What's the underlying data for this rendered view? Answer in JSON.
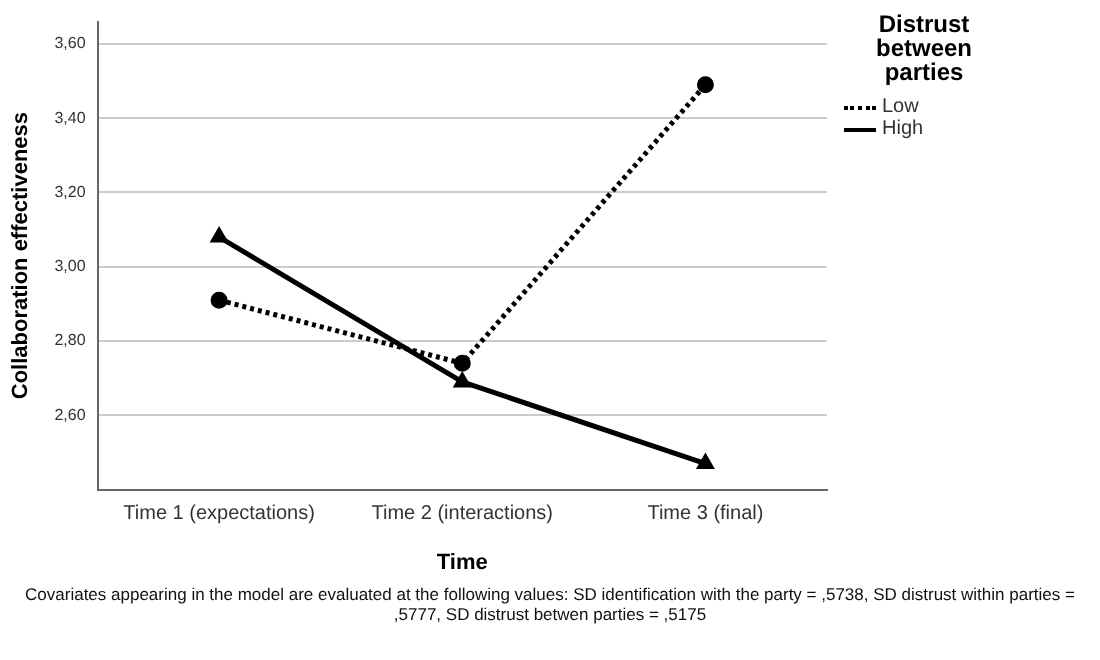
{
  "chart_data": {
    "type": "line",
    "xlabel": "Time",
    "ylabel": "Collaboration effectiveness",
    "legend_title": "Distrust between parties",
    "legend": "right",
    "grid": "y",
    "categories": [
      "Time 1 (expectations)",
      "Time 2 (interactions)",
      "Time 3 (final)"
    ],
    "series": [
      {
        "name": "Low",
        "color": "#000000",
        "values": [
          2.91,
          2.74,
          3.49
        ],
        "line_style": "dotted",
        "marker": "circle"
      },
      {
        "name": "High",
        "color": "#000000",
        "values": [
          3.08,
          2.69,
          2.47
        ],
        "line_style": "solid",
        "marker": "triangle"
      }
    ],
    "ylim": [
      2.4,
      3.66
    ],
    "yticks": [
      {
        "value": 2.6,
        "label": "2,60"
      },
      {
        "value": 2.8,
        "label": "2,80"
      },
      {
        "value": 3.0,
        "label": "3,00"
      },
      {
        "value": 3.2,
        "label": "3,20"
      },
      {
        "value": 3.4,
        "label": "3,40"
      },
      {
        "value": 3.6,
        "label": "3,60"
      }
    ],
    "annotations": [
      "Covariates appearing in the model are evaluated at the following values: SD identification with the party = ,5738, SD distrust within parties = ,5777, SD distrust betwen parties = ,5175"
    ]
  }
}
